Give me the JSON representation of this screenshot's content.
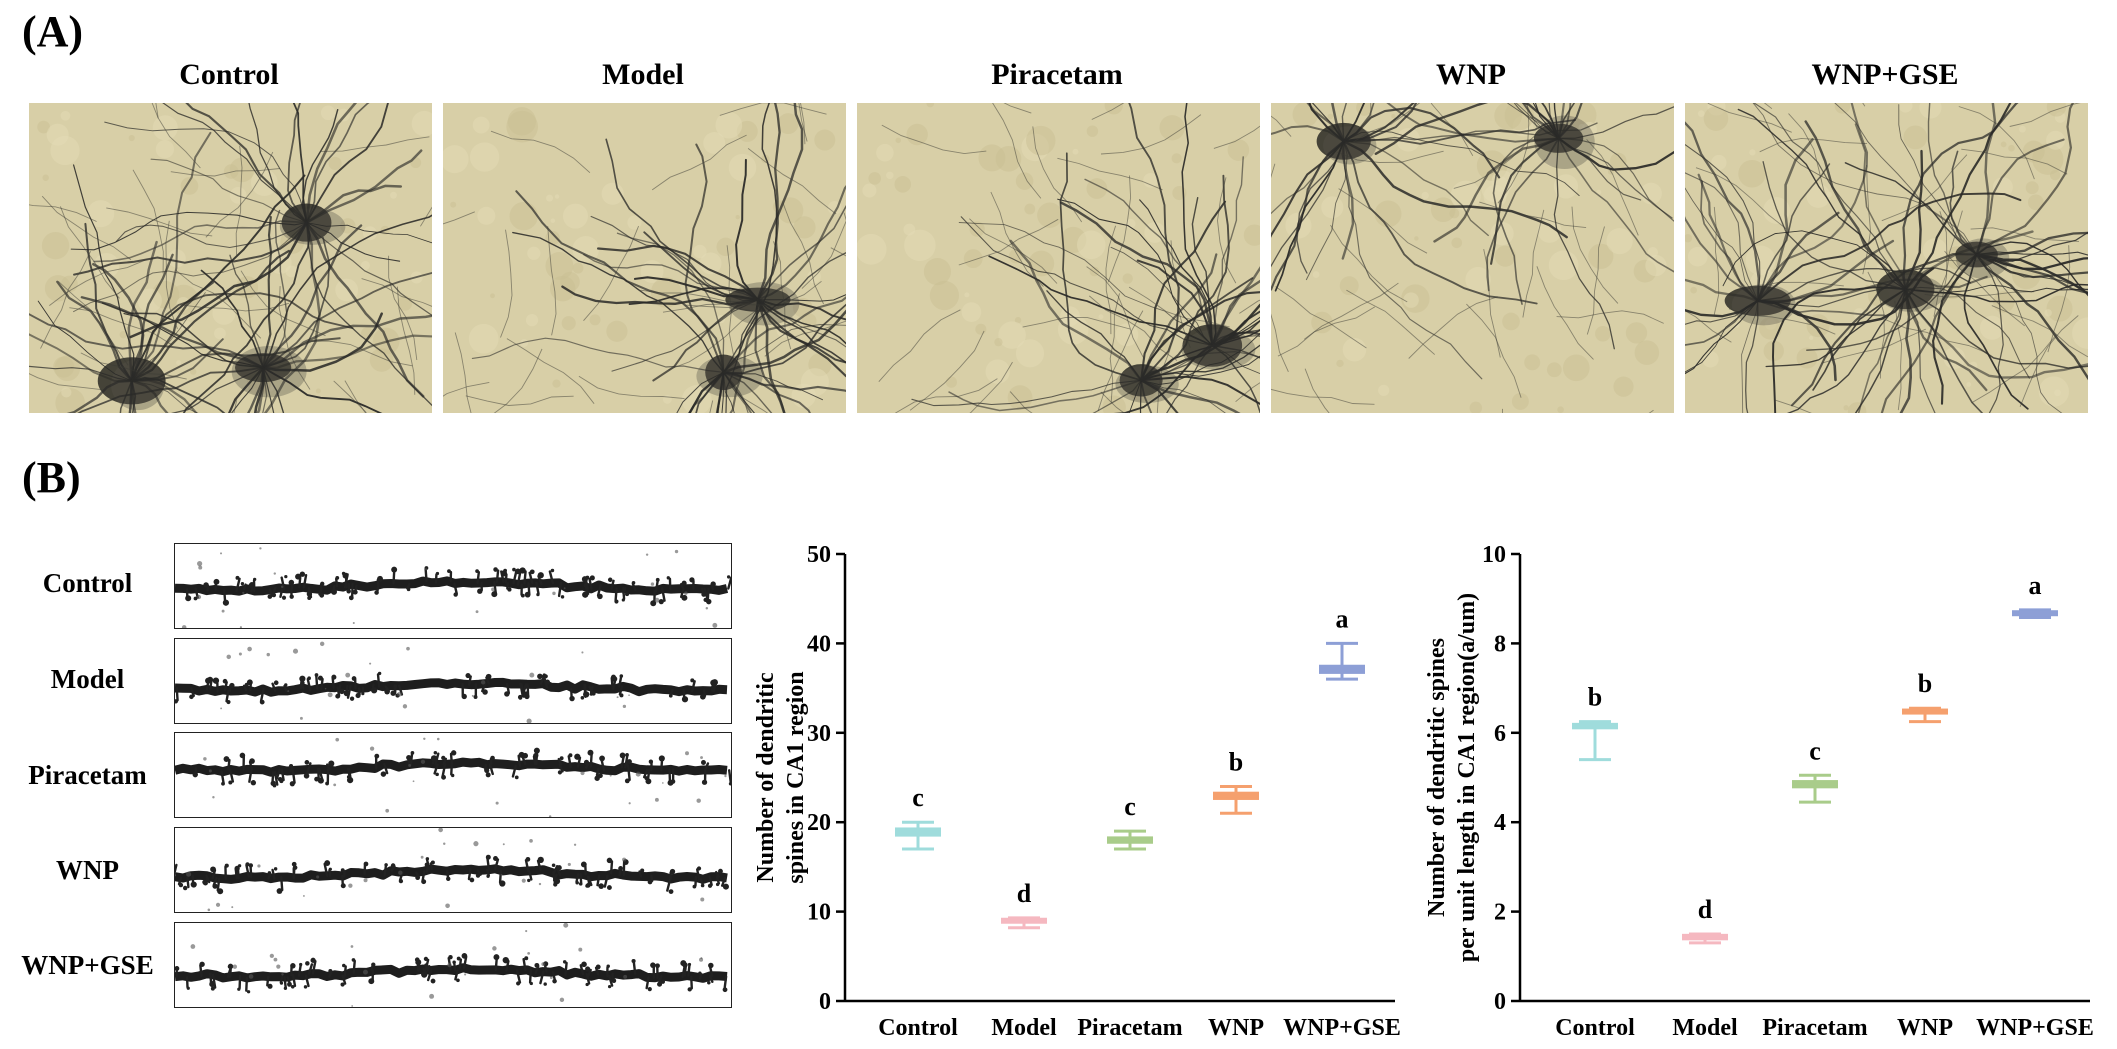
{
  "panels": {
    "a_label": "(A)",
    "b_label": "(B)"
  },
  "groups": [
    "Control",
    "Model",
    "Piracetam",
    "WNP",
    "WNP+GSE"
  ],
  "colors": {
    "Control": "#9fdcdc",
    "Model": "#f5b8c0",
    "Piracetam": "#a9cc8a",
    "WNP": "#f5a06e",
    "WNP+GSE": "#8d9fd6",
    "micro_bg": "#d8cfa7",
    "neuron": "#2a2a28"
  },
  "chart_data": [
    {
      "type": "box",
      "ylabel": "Number of dendritic spines in CA1 region",
      "ylim": [
        0,
        50
      ],
      "yticks": [
        0,
        10,
        20,
        30,
        40,
        50
      ],
      "categories": [
        "Control",
        "Model",
        "Piracetam",
        "WNP",
        "WNP+GSE"
      ],
      "series": [
        {
          "category": "Control",
          "median": 19,
          "q1": 18.5,
          "q3": 19.3,
          "min": 17,
          "max": 20,
          "letter": "c"
        },
        {
          "category": "Model",
          "median": 9,
          "q1": 8.8,
          "q3": 9.2,
          "min": 8.2,
          "max": 9.3,
          "letter": "d"
        },
        {
          "category": "Piracetam",
          "median": 18,
          "q1": 17.7,
          "q3": 18.3,
          "min": 17,
          "max": 19,
          "letter": "c"
        },
        {
          "category": "WNP",
          "median": 23,
          "q1": 22.6,
          "q3": 23.3,
          "min": 21,
          "max": 24,
          "letter": "b"
        },
        {
          "category": "WNP+GSE",
          "median": 37,
          "q1": 36.7,
          "q3": 37.5,
          "min": 36,
          "max": 40,
          "letter": "a"
        }
      ]
    },
    {
      "type": "box",
      "ylabel": "Number of dendritic spines per unit length in CA1 region(a/um)",
      "ylim": [
        0,
        10
      ],
      "yticks": [
        0,
        2,
        4,
        6,
        8,
        10
      ],
      "categories": [
        "Control",
        "Model",
        "Piracetam",
        "WNP",
        "WNP+GSE"
      ],
      "series": [
        {
          "category": "Control",
          "median": 6.15,
          "q1": 6.1,
          "q3": 6.2,
          "min": 5.4,
          "max": 6.25,
          "letter": "b"
        },
        {
          "category": "Model",
          "median": 1.43,
          "q1": 1.38,
          "q3": 1.48,
          "min": 1.3,
          "max": 1.5,
          "letter": "d"
        },
        {
          "category": "Piracetam",
          "median": 4.85,
          "q1": 4.78,
          "q3": 4.92,
          "min": 4.45,
          "max": 5.05,
          "letter": "c"
        },
        {
          "category": "WNP",
          "median": 6.47,
          "q1": 6.43,
          "q3": 6.52,
          "min": 6.25,
          "max": 6.55,
          "letter": "b"
        },
        {
          "category": "WNP+GSE",
          "median": 8.68,
          "q1": 8.64,
          "q3": 8.72,
          "min": 8.58,
          "max": 8.75,
          "letter": "a"
        }
      ]
    }
  ]
}
